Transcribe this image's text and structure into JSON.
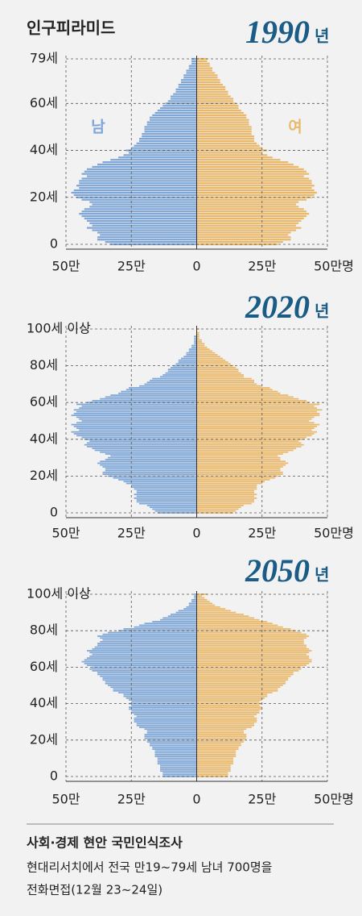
{
  "title": "인구피라미드",
  "chart_data": [
    {
      "type": "pyramid",
      "title": "1990",
      "title_unit": "년",
      "y": [
        0,
        1,
        2,
        3,
        4,
        5,
        6,
        7,
        8,
        9,
        10,
        11,
        12,
        13,
        14,
        15,
        16,
        17,
        18,
        19,
        20,
        21,
        22,
        23,
        24,
        25,
        26,
        27,
        28,
        29,
        30,
        31,
        32,
        33,
        34,
        35,
        36,
        37,
        38,
        39,
        40,
        41,
        42,
        43,
        44,
        45,
        46,
        47,
        48,
        49,
        50,
        51,
        52,
        53,
        54,
        55,
        56,
        57,
        58,
        59,
        60,
        61,
        62,
        63,
        64,
        65,
        66,
        67,
        68,
        69,
        70,
        71,
        72,
        73,
        74,
        75,
        76,
        77,
        78,
        79
      ],
      "ylim": [
        0,
        79
      ],
      "yticks": [
        0,
        {
          "value": 20,
          "label": "20세"
        },
        {
          "value": 40,
          "label": "40세"
        },
        {
          "value": 60,
          "label": "60세"
        },
        {
          "value": 79,
          "label": "79세"
        }
      ],
      "xlim": [
        -50,
        50
      ],
      "xticks": [
        {
          "value": -50,
          "label": "50만"
        },
        {
          "value": -25,
          "label": "25만"
        },
        0,
        {
          "value": 25,
          "label": "25만"
        },
        {
          "value": 50,
          "label": "50만명"
        }
      ],
      "series": [
        {
          "name": "남",
          "color": "#7ea6d6",
          "side": "left",
          "values": [
            33,
            35,
            38,
            38,
            37,
            38,
            40,
            42,
            40,
            41,
            42,
            43,
            44,
            45,
            44,
            43,
            41,
            40,
            41,
            44,
            46,
            47,
            48,
            47,
            45,
            46,
            45,
            45,
            44,
            42,
            44,
            43,
            42,
            40,
            38,
            36,
            33,
            30,
            28,
            26,
            27,
            25,
            24,
            23,
            22,
            22,
            21,
            21,
            20,
            20,
            20,
            19,
            19,
            18,
            18,
            17,
            16,
            15,
            14,
            13,
            12,
            11,
            10,
            10,
            9,
            8,
            8,
            7,
            7,
            6,
            6,
            5,
            5,
            4,
            4,
            3,
            3,
            2,
            2,
            2
          ]
        },
        {
          "name": "여",
          "color": "#e9b86a",
          "side": "right",
          "values": [
            31,
            33,
            36,
            36,
            35,
            36,
            38,
            40,
            38,
            39,
            40,
            41,
            42,
            43,
            42,
            41,
            39,
            38,
            39,
            42,
            44,
            45,
            46,
            45,
            44,
            45,
            44,
            44,
            43,
            41,
            43,
            42,
            41,
            39,
            37,
            35,
            32,
            29,
            27,
            25,
            27,
            25,
            24,
            23,
            22,
            22,
            22,
            21,
            21,
            21,
            21,
            20,
            20,
            20,
            19,
            19,
            18,
            17,
            16,
            16,
            15,
            14,
            14,
            13,
            12,
            12,
            11,
            11,
            10,
            9,
            9,
            8,
            8,
            7,
            6,
            6,
            5,
            5,
            4,
            4
          ]
        }
      ]
    },
    {
      "type": "pyramid",
      "title": "2020",
      "title_unit": "년",
      "y": [
        0,
        1,
        2,
        3,
        4,
        5,
        6,
        7,
        8,
        9,
        10,
        11,
        12,
        13,
        14,
        15,
        16,
        17,
        18,
        19,
        20,
        21,
        22,
        23,
        24,
        25,
        26,
        27,
        28,
        29,
        30,
        31,
        32,
        33,
        34,
        35,
        36,
        37,
        38,
        39,
        40,
        41,
        42,
        43,
        44,
        45,
        46,
        47,
        48,
        49,
        50,
        51,
        52,
        53,
        54,
        55,
        56,
        57,
        58,
        59,
        60,
        61,
        62,
        63,
        64,
        65,
        66,
        67,
        68,
        69,
        70,
        71,
        72,
        73,
        74,
        75,
        76,
        77,
        78,
        79,
        80,
        81,
        82,
        83,
        84,
        85,
        86,
        87,
        88,
        89,
        90,
        91,
        92,
        93,
        94,
        95,
        96,
        97,
        98,
        99,
        100
      ],
      "ylim": [
        0,
        100
      ],
      "yticks": [
        0,
        {
          "value": 20,
          "label": "20세"
        },
        {
          "value": 40,
          "label": "40세"
        },
        {
          "value": 60,
          "label": "60세"
        },
        {
          "value": 80,
          "label": "80세"
        },
        {
          "value": 100,
          "label": "100세 이상"
        }
      ],
      "xlim": [
        -50,
        50
      ],
      "xticks": [
        {
          "value": -50,
          "label": "50만"
        },
        {
          "value": -25,
          "label": "25만"
        },
        0,
        {
          "value": 25,
          "label": "25만"
        },
        {
          "value": 50,
          "label": "50만명"
        }
      ],
      "series": [
        {
          "color": "#7ea6d6",
          "side": "left",
          "values": [
            15,
            16,
            17,
            18,
            19,
            22,
            23,
            23,
            24,
            23,
            24,
            23,
            23,
            24,
            25,
            25,
            27,
            28,
            30,
            32,
            34,
            36,
            36,
            35,
            35,
            36,
            37,
            38,
            37,
            35,
            34,
            33,
            35,
            37,
            39,
            40,
            42,
            43,
            42,
            41,
            43,
            44,
            46,
            47,
            48,
            45,
            46,
            47,
            48,
            46,
            44,
            45,
            46,
            48,
            47,
            46,
            47,
            45,
            44,
            46,
            42,
            40,
            37,
            35,
            33,
            30,
            29,
            27,
            26,
            22,
            20,
            19,
            18,
            17,
            14,
            13,
            12,
            11,
            11,
            10,
            9,
            8,
            7,
            7,
            6,
            5,
            4,
            4,
            3,
            3,
            2,
            2,
            1,
            1,
            1,
            1,
            1,
            0,
            0,
            0,
            0
          ]
        },
        {
          "color": "#e9b86a",
          "side": "right",
          "values": [
            14,
            15,
            16,
            17,
            18,
            21,
            22,
            22,
            23,
            22,
            23,
            22,
            22,
            23,
            23,
            23,
            25,
            26,
            28,
            30,
            31,
            33,
            33,
            32,
            32,
            33,
            34,
            35,
            34,
            32,
            32,
            31,
            33,
            35,
            37,
            38,
            40,
            41,
            40,
            39,
            41,
            42,
            44,
            45,
            46,
            44,
            45,
            46,
            47,
            45,
            43,
            44,
            45,
            47,
            47,
            46,
            48,
            46,
            45,
            47,
            43,
            42,
            39,
            37,
            35,
            32,
            31,
            29,
            28,
            25,
            23,
            22,
            22,
            21,
            18,
            18,
            17,
            16,
            16,
            15,
            14,
            13,
            12,
            11,
            10,
            9,
            8,
            7,
            6,
            5,
            4,
            3,
            3,
            2,
            2,
            1,
            1,
            1,
            1,
            0,
            1
          ]
        }
      ]
    },
    {
      "type": "pyramid",
      "title": "2050",
      "title_unit": "년",
      "y": [
        0,
        1,
        2,
        3,
        4,
        5,
        6,
        7,
        8,
        9,
        10,
        11,
        12,
        13,
        14,
        15,
        16,
        17,
        18,
        19,
        20,
        21,
        22,
        23,
        24,
        25,
        26,
        27,
        28,
        29,
        30,
        31,
        32,
        33,
        34,
        35,
        36,
        37,
        38,
        39,
        40,
        41,
        42,
        43,
        44,
        45,
        46,
        47,
        48,
        49,
        50,
        51,
        52,
        53,
        54,
        55,
        56,
        57,
        58,
        59,
        60,
        61,
        62,
        63,
        64,
        65,
        66,
        67,
        68,
        69,
        70,
        71,
        72,
        73,
        74,
        75,
        76,
        77,
        78,
        79,
        80,
        81,
        82,
        83,
        84,
        85,
        86,
        87,
        88,
        89,
        90,
        91,
        92,
        93,
        94,
        95,
        96,
        97,
        98,
        99,
        100
      ],
      "ylim": [
        0,
        100
      ],
      "yticks": [
        0,
        {
          "value": 20,
          "label": "20세"
        },
        {
          "value": 40,
          "label": "40세"
        },
        {
          "value": 60,
          "label": "60세"
        },
        {
          "value": 80,
          "label": "80세"
        },
        {
          "value": 100,
          "label": "100세 이상"
        }
      ],
      "xlim": [
        -50,
        50
      ],
      "xticks": [
        {
          "value": -50,
          "label": "50만"
        },
        {
          "value": -25,
          "label": "25만"
        },
        0,
        {
          "value": 25,
          "label": "25만"
        },
        {
          "value": 50,
          "label": "50만명"
        }
      ],
      "series": [
        {
          "color": "#7ea6d6",
          "side": "left",
          "values": [
            13,
            13,
            13,
            14,
            14,
            14,
            14,
            15,
            15,
            15,
            15,
            16,
            16,
            16,
            16,
            17,
            17,
            18,
            18,
            19,
            19,
            20,
            20,
            20,
            19,
            19,
            20,
            22,
            23,
            23,
            24,
            24,
            24,
            23,
            24,
            25,
            25,
            26,
            26,
            25,
            26,
            25,
            26,
            27,
            28,
            28,
            30,
            32,
            32,
            33,
            34,
            35,
            35,
            36,
            36,
            37,
            38,
            38,
            40,
            41,
            40,
            42,
            43,
            44,
            43,
            42,
            41,
            40,
            41,
            42,
            40,
            39,
            38,
            38,
            37,
            36,
            37,
            38,
            36,
            34,
            30,
            28,
            24,
            22,
            20,
            17,
            14,
            13,
            11,
            10,
            8,
            7,
            5,
            4,
            3,
            3,
            2,
            2,
            1,
            1,
            1
          ]
        },
        {
          "color": "#e9b86a",
          "side": "right",
          "values": [
            12,
            12,
            12,
            13,
            13,
            13,
            13,
            14,
            14,
            14,
            14,
            15,
            15,
            15,
            15,
            16,
            16,
            17,
            17,
            18,
            18,
            19,
            19,
            19,
            18,
            18,
            19,
            21,
            22,
            22,
            23,
            23,
            23,
            22,
            23,
            24,
            24,
            25,
            25,
            24,
            25,
            24,
            25,
            26,
            27,
            27,
            29,
            31,
            31,
            32,
            33,
            34,
            34,
            35,
            35,
            36,
            37,
            37,
            39,
            40,
            40,
            42,
            43,
            44,
            44,
            43,
            43,
            42,
            43,
            44,
            43,
            42,
            42,
            41,
            41,
            41,
            42,
            43,
            42,
            40,
            38,
            36,
            33,
            31,
            29,
            27,
            24,
            22,
            20,
            18,
            15,
            13,
            11,
            9,
            7,
            6,
            5,
            4,
            3,
            2,
            4
          ]
        }
      ]
    }
  ],
  "footer": {
    "title": "사회·경제 현안 국민인식조사",
    "lines": [
      "현대리서치에서 전국 만19~79세 남녀 700명을",
      "전화면접(12월 23~24일)"
    ]
  }
}
